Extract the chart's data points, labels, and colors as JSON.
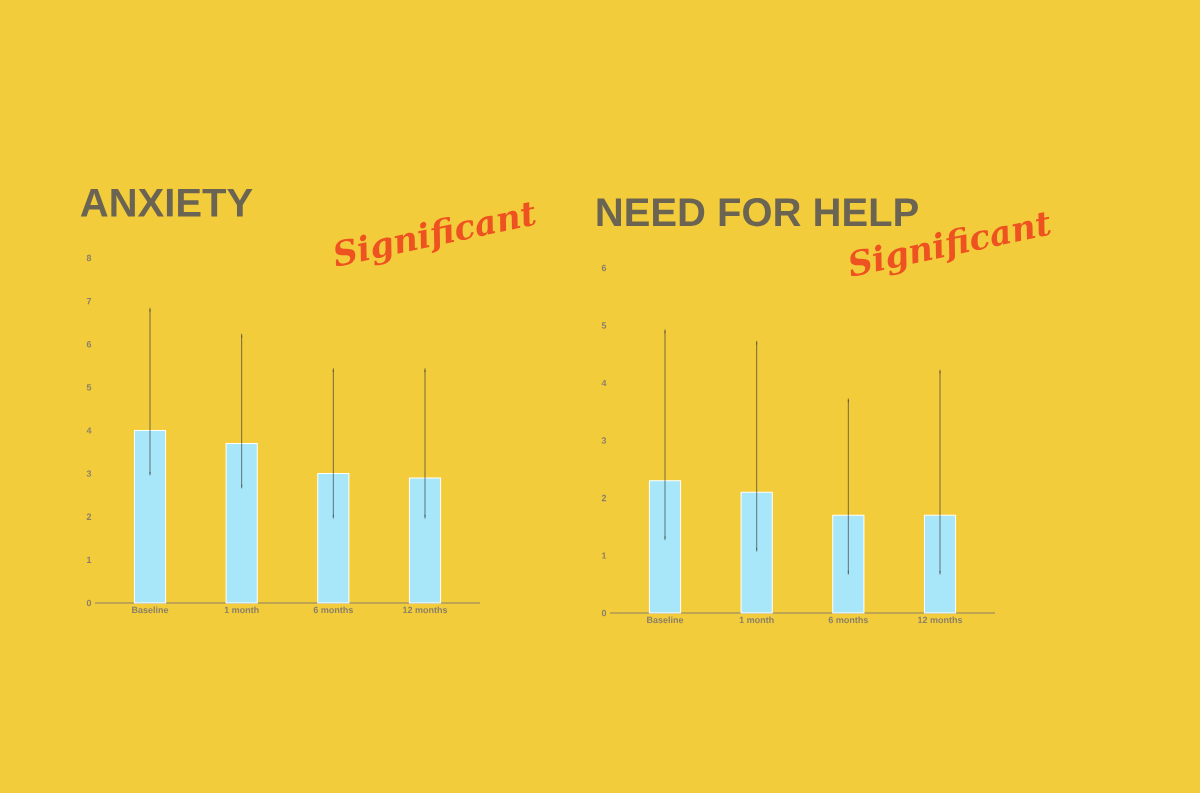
{
  "chart_data": [
    {
      "type": "bar",
      "title": "ANXIETY",
      "annotations": [
        "Significant"
      ],
      "categories": [
        "Baseline",
        "1 month",
        "6 months",
        "12 months"
      ],
      "values": [
        4.0,
        3.7,
        3.0,
        2.9
      ],
      "errors": [
        [
          3.0,
          6.8
        ],
        [
          2.7,
          6.2
        ],
        [
          2.0,
          5.4
        ],
        [
          2.0,
          5.4
        ]
      ],
      "color": "#a8e6fa",
      "ylim": [
        0,
        8
      ],
      "yticks": [
        0,
        1,
        2,
        3,
        4,
        5,
        6,
        7,
        8
      ]
    },
    {
      "type": "bar",
      "title": "NEED FOR HELP",
      "annotations": [
        "Significant"
      ],
      "categories": [
        "Baseline",
        "1 month",
        "6 months",
        "12 months"
      ],
      "values": [
        2.3,
        2.1,
        1.7,
        1.7
      ],
      "errors": [
        [
          1.3,
          4.9
        ],
        [
          1.1,
          4.7
        ],
        [
          0.7,
          3.7
        ],
        [
          0.7,
          4.2
        ]
      ],
      "color": "#a8e6fa",
      "ylim": [
        0,
        6
      ],
      "yticks": [
        0,
        1,
        2,
        3,
        4,
        5,
        6
      ]
    }
  ]
}
